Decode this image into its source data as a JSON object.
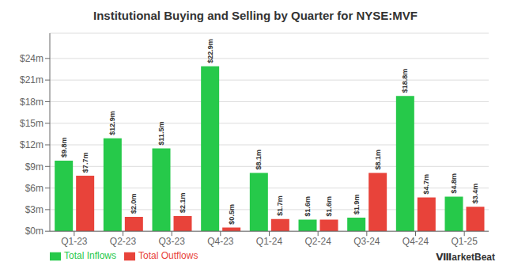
{
  "chart_data": {
    "type": "bar",
    "title": "Institutional Buying and Selling by Quarter for NYSE:MVF",
    "categories": [
      "Q1-23",
      "Q2-23",
      "Q3-23",
      "Q4-23",
      "Q1-24",
      "Q2-24",
      "Q3-24",
      "Q4-24",
      "Q1-25"
    ],
    "series": [
      {
        "name": "Total Inflows",
        "color": "#26c94a",
        "values": [
          9.8,
          12.9,
          11.5,
          22.9,
          8.1,
          1.6,
          1.9,
          18.8,
          4.8
        ],
        "value_labels": [
          "$9.8m",
          "$12.9m",
          "$11.5m",
          "$22.9m",
          "$8.1m",
          "$1.6m",
          "$1.9m",
          "$18.8m",
          "$4.8m"
        ]
      },
      {
        "name": "Total Outflows",
        "color": "#e8433a",
        "values": [
          7.7,
          2.0,
          2.1,
          0.5,
          1.7,
          1.6,
          8.1,
          4.7,
          3.4
        ],
        "value_labels": [
          "$7.7m",
          "$2.0m",
          "$2.1m",
          "$0.5m",
          "$1.7m",
          "$1.6m",
          "$8.1m",
          "$4.7m",
          "$3.4m"
        ]
      }
    ],
    "ylim": [
      0,
      27.5
    ],
    "yticks": [
      {
        "value": 0,
        "label": "$0m"
      },
      {
        "value": 3,
        "label": "$3m"
      },
      {
        "value": 6,
        "label": "$6m"
      },
      {
        "value": 9,
        "label": "$9m"
      },
      {
        "value": 12,
        "label": "$12m"
      },
      {
        "value": 15,
        "label": "$15m"
      },
      {
        "value": 18,
        "label": "$18m"
      },
      {
        "value": 21,
        "label": "$21m"
      },
      {
        "value": 24,
        "label": "$24m"
      }
    ],
    "grid": true,
    "legend": "lower left",
    "data_labels": true,
    "annotations": [
      "ⅧarketBeat"
    ]
  }
}
